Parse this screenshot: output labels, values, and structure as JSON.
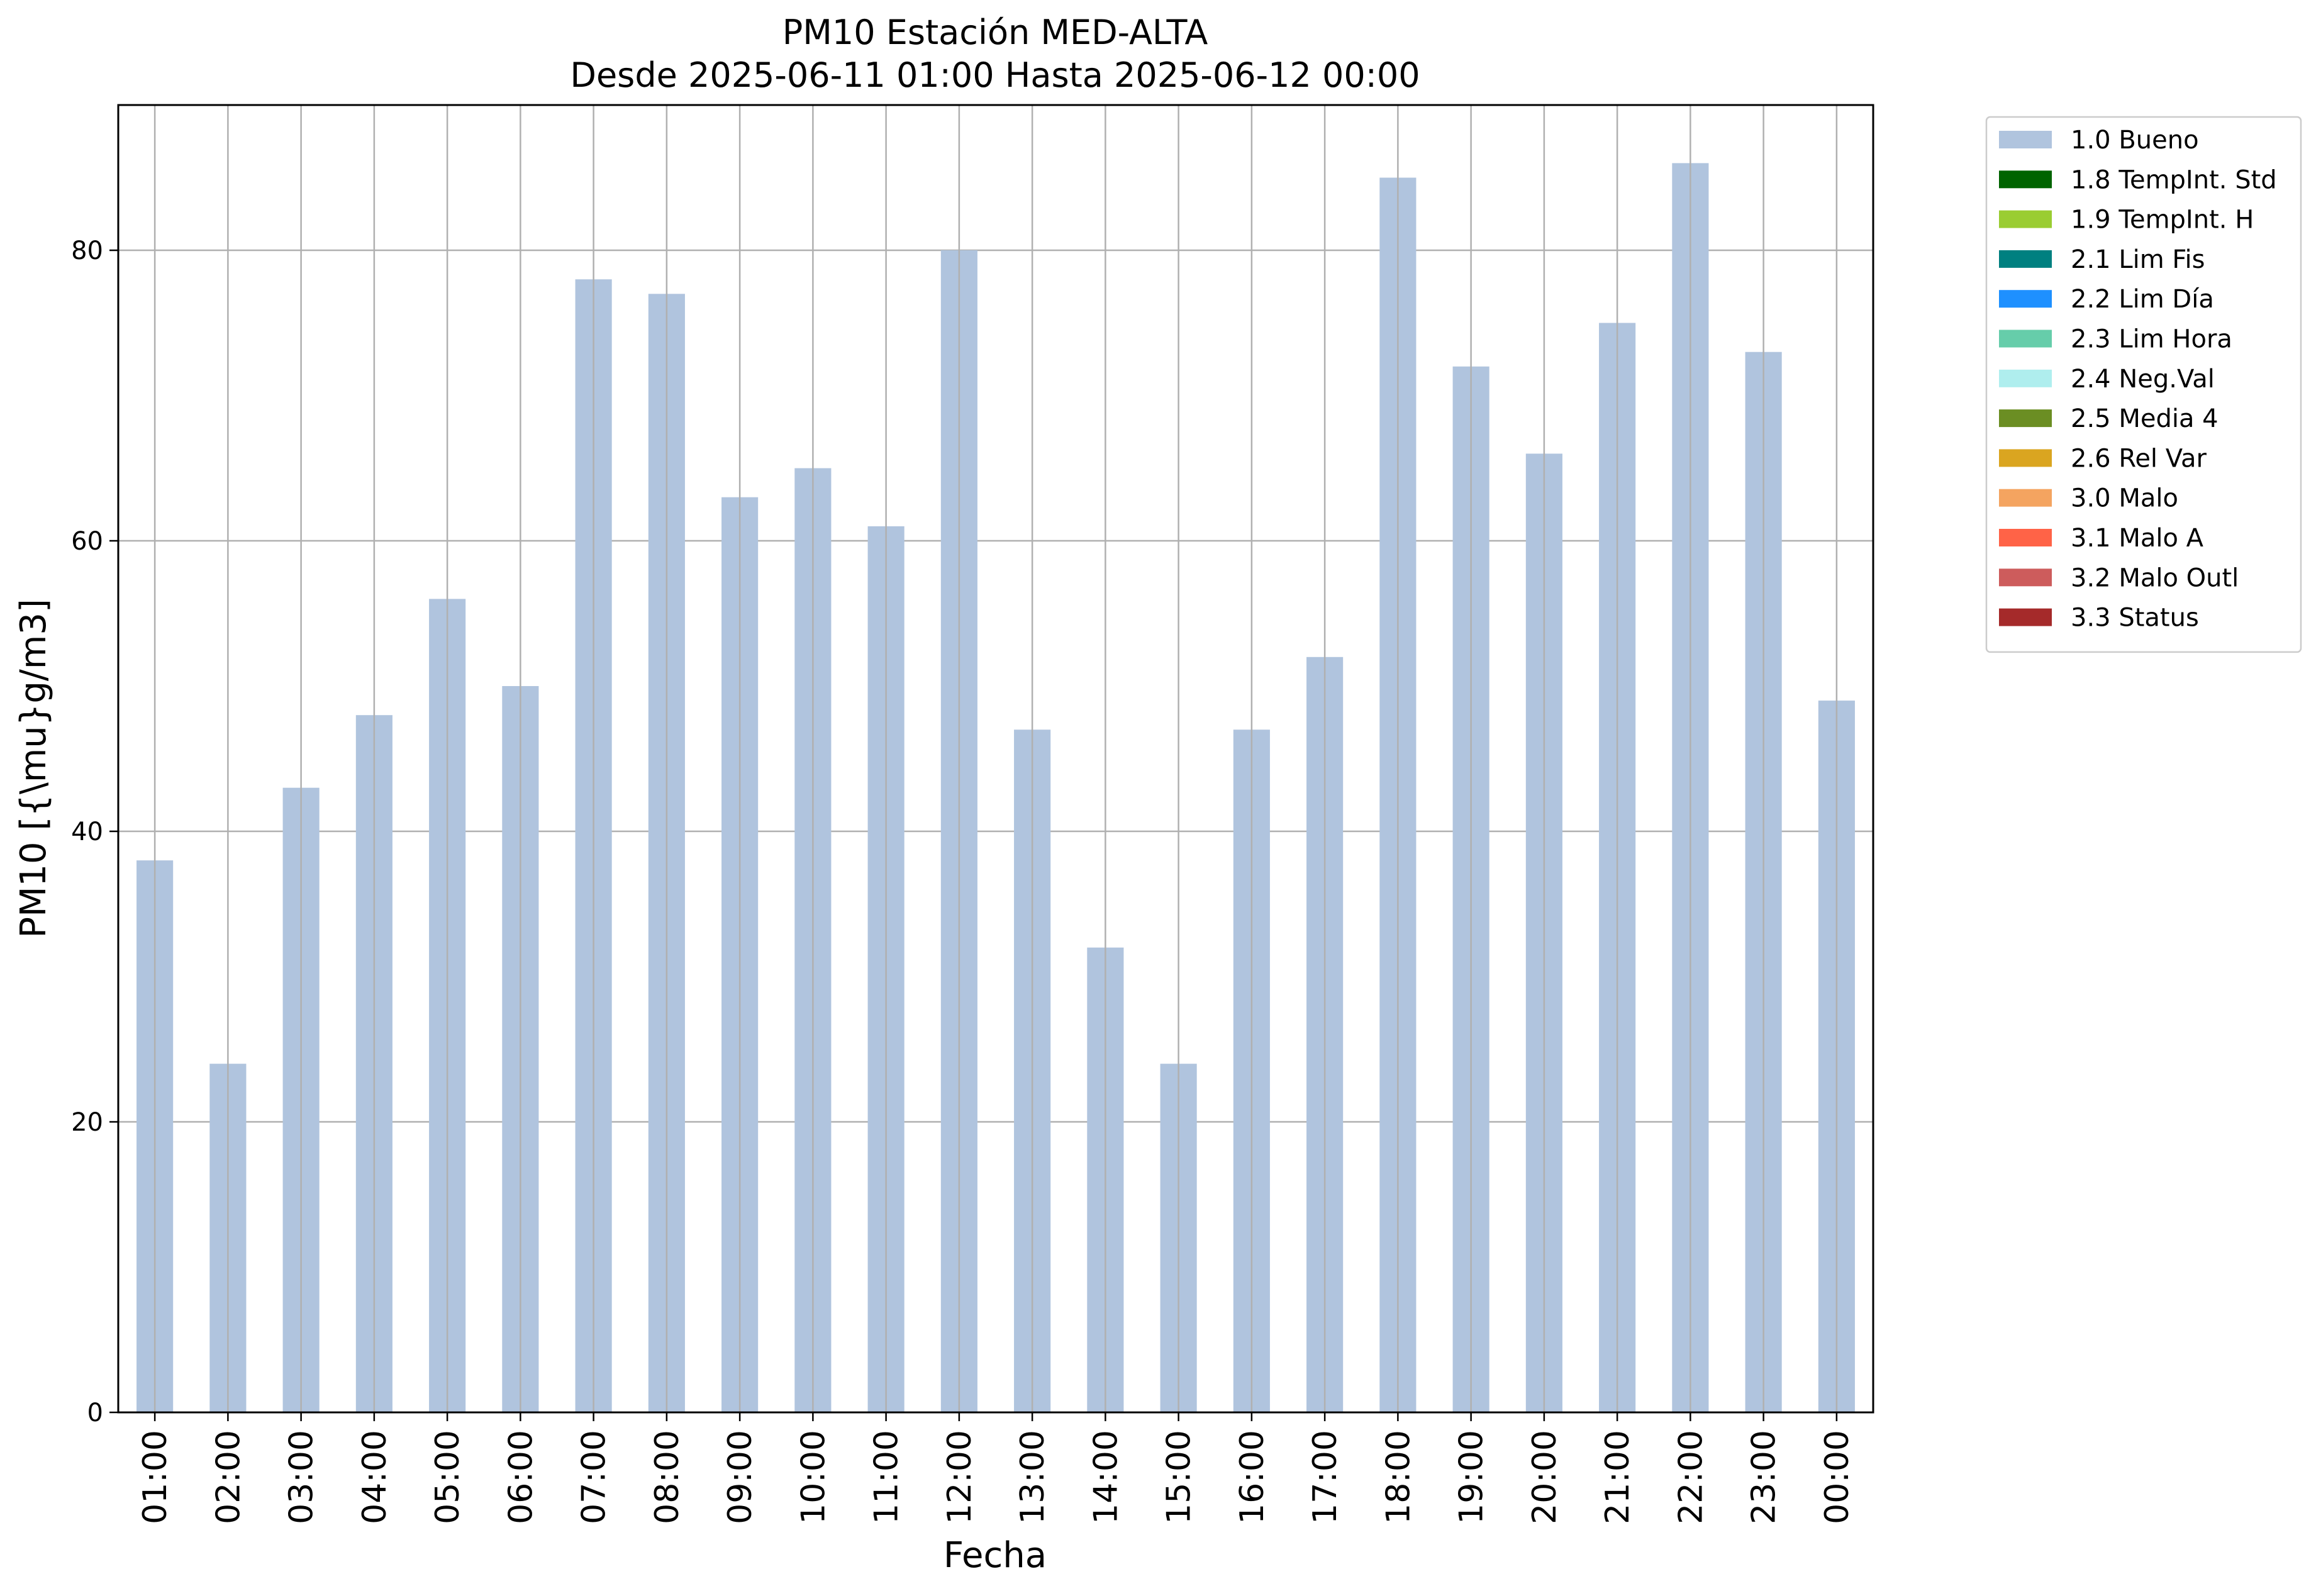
{
  "chart_data": {
    "type": "bar",
    "title": "PM10 Estación MED-ALTA",
    "subtitle": "Desde 2025-06-11 01:00 Hasta 2025-06-12 00:00",
    "xlabel": "Fecha",
    "ylabel": "PM10 [{\\mu}g/m3]",
    "categories": [
      "01:00",
      "02:00",
      "03:00",
      "04:00",
      "05:00",
      "06:00",
      "07:00",
      "08:00",
      "09:00",
      "10:00",
      "11:00",
      "12:00",
      "13:00",
      "14:00",
      "15:00",
      "16:00",
      "17:00",
      "18:00",
      "19:00",
      "20:00",
      "21:00",
      "22:00",
      "23:00",
      "00:00"
    ],
    "series": [
      {
        "name": "1.0 Bueno",
        "color": "#b0c4de",
        "values": [
          38,
          24,
          43,
          48,
          56,
          50,
          78,
          77,
          63,
          65,
          61,
          80,
          47,
          32,
          24,
          47,
          52,
          85,
          72,
          66,
          75,
          86,
          73,
          49
        ]
      }
    ],
    "ylim": [
      0,
      90
    ],
    "yticks": [
      0,
      20,
      40,
      60,
      80
    ],
    "grid": true,
    "legend_position": "outside-top-right",
    "legend": [
      {
        "label": "1.0 Bueno",
        "color": "#b0c4de"
      },
      {
        "label": "1.8 TempInt. Std",
        "color": "#006400"
      },
      {
        "label": "1.9 TempInt. H",
        "color": "#9acd32"
      },
      {
        "label": "2.1 Lim Fis",
        "color": "#008080"
      },
      {
        "label": "2.2 Lim Día",
        "color": "#1e90ff"
      },
      {
        "label": "2.3 Lim Hora",
        "color": "#66cdaa"
      },
      {
        "label": "2.4 Neg.Val",
        "color": "#afeeee"
      },
      {
        "label": "2.5 Media 4",
        "color": "#6b8e23"
      },
      {
        "label": "2.6 Rel Var",
        "color": "#daa520"
      },
      {
        "label": "3.0 Malo",
        "color": "#f4a460"
      },
      {
        "label": "3.1 Malo A",
        "color": "#ff6347"
      },
      {
        "label": "3.2 Malo Outl",
        "color": "#cd5c5c"
      },
      {
        "label": "3.3 Status",
        "color": "#a52a2a"
      }
    ]
  }
}
